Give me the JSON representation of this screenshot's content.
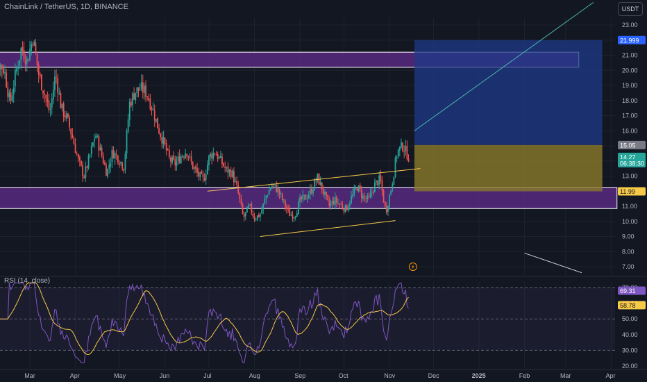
{
  "header": {
    "symbol": "ChainLink / TetherUS, 1D, BINANCE",
    "currency_button": "USDT"
  },
  "rsi_panel": {
    "label": "RSI (14, close)"
  },
  "colors": {
    "background": "#131722",
    "up": "#26a69a",
    "down": "#ef5350",
    "zone_purple": "#5b2a86",
    "target_blue": "#1e3a8a",
    "entry_gold": "#8a7a2a",
    "trendline_yellow": "#f7c948",
    "rsi_line": "#7e57c2",
    "rsi_ma": "#f7c948"
  },
  "chart_data": [
    {
      "type": "candlestick",
      "title": "ChainLink / TetherUS, 1D, BINANCE",
      "ylim": [
        6.5,
        24.0
      ],
      "y_ticks": [
        "23.00",
        "22.00",
        "21.00",
        "20.00",
        "19.00",
        "18.00",
        "17.00",
        "16.00",
        "15.00",
        "14.00",
        "13.00",
        "12.00",
        "11.00",
        "10.00",
        "9.00",
        "8.00",
        "7.00"
      ],
      "x_ticks": [
        "Mar",
        "Apr",
        "May",
        "Jun",
        "Jul",
        "Aug",
        "Sep",
        "Oct",
        "Nov",
        "Dec",
        "2025",
        "Feb",
        "Mar",
        "Apr"
      ],
      "price_labels": [
        {
          "value": "21.999",
          "price": 22.0,
          "color": "#2962ff"
        },
        {
          "value": "15.05",
          "price": 15.05,
          "color": "#787b86"
        },
        {
          "value": "14.27",
          "price": 14.27,
          "color": "#26a69a"
        },
        {
          "value": "06:38:30",
          "price": 13.85,
          "color": "#26a69a"
        },
        {
          "value": "11.99",
          "price": 11.99,
          "color": "#f7c948"
        }
      ],
      "series": [
        {
          "type": "candles",
          "date_range": [
            "2024-02-01",
            "2024-11-14"
          ],
          "path": [
            14.6,
            16.5,
            20.5,
            20.0,
            17.8,
            19.8,
            21.5,
            20.6,
            22.2,
            19.8,
            18.5,
            17.2,
            19.8,
            17.5,
            16.8,
            15.5,
            14.0,
            13.0,
            14.3,
            15.8,
            14.5,
            13.2,
            14.6,
            14.2,
            13.6,
            17.8,
            18.6,
            18.8,
            18.5,
            17.5,
            16.2,
            15.2,
            14.1,
            13.8,
            14.3,
            14.7,
            13.7,
            13.1,
            12.7,
            14.3,
            14.6,
            14.0,
            13.4,
            13.2,
            12.0,
            10.2,
            11.0,
            10.2,
            10.5,
            11.7,
            12.4,
            12.1,
            11.3,
            10.5,
            10.4,
            11.4,
            11.6,
            12.1,
            12.9,
            12.0,
            11.0,
            11.4,
            11.1,
            10.8,
            11.6,
            12.3,
            11.6,
            11.4,
            12.4,
            12.8,
            10.6,
            12.3,
            14.6,
            15.0,
            14.27
          ]
        }
      ],
      "zones": [
        {
          "name": "resistance-zone",
          "from": 20.2,
          "to": 21.2,
          "start": "2024-02-01",
          "end": "2025-03-10"
        },
        {
          "name": "support-zone",
          "from": 10.85,
          "to": 12.25,
          "start": "2024-02-01",
          "end": "2025-04-05"
        },
        {
          "name": "target-zone",
          "from": 15.05,
          "to": 22.0,
          "start": "2024-11-18",
          "end": "2025-03-26"
        },
        {
          "name": "entry-zone",
          "from": 11.99,
          "to": 15.05,
          "start": "2024-11-18",
          "end": "2025-03-26"
        }
      ],
      "trendlines": [
        {
          "name": "channel-upper",
          "from": [
            "2024-06-30",
            12.0
          ],
          "to": [
            "2024-11-22",
            13.5
          ]
        },
        {
          "name": "channel-lower",
          "from": [
            "2024-08-05",
            9.0
          ],
          "to": [
            "2024-11-05",
            10.05
          ]
        }
      ]
    },
    {
      "type": "line",
      "title": "RSI (14, close)",
      "ylim": [
        17,
        74
      ],
      "y_ticks": [
        "70.00",
        "60.00",
        "50.00",
        "40.00",
        "30.00",
        "20.00"
      ],
      "guides": [
        70,
        50,
        30
      ],
      "value_labels": [
        {
          "value": "69.31",
          "level": 68.0,
          "color": "#7e57c2"
        },
        {
          "value": "58.78",
          "level": 58.78,
          "color": "#f7c948"
        }
      ]
    }
  ]
}
